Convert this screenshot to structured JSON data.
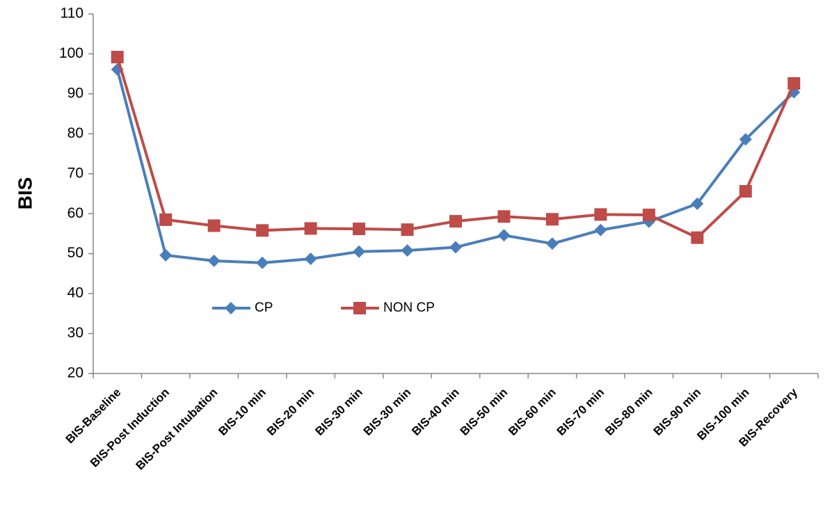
{
  "chart_data": {
    "type": "line",
    "y_label": "BIS",
    "categories": [
      "BIS-Baseline",
      "BIS-Post Induction",
      "BIS-Post Intubation",
      "BIS-10 min",
      "BIS-20 min",
      "BIS-30 min",
      "BIS-30 min",
      "BIS-40 min",
      "BIS-50 min",
      "BIS-60 min",
      "BIS-70 min",
      "BIS-80 min",
      "BIS-90 min",
      "BIS-100 min",
      "BIS-Recovery"
    ],
    "series": [
      {
        "name": "CP",
        "color": "#4a7ebb",
        "marker": "diamond",
        "values": [
          96.1,
          49.6,
          48.2,
          47.7,
          48.7,
          50.5,
          50.8,
          51.6,
          54.6,
          52.5,
          55.9,
          58.0,
          62.5,
          78.6,
          90.4
        ]
      },
      {
        "name": "NON CP",
        "color": "#be4b48",
        "marker": "square",
        "values": [
          99.2,
          58.5,
          57.0,
          55.8,
          56.3,
          56.2,
          56.0,
          58.1,
          59.3,
          58.6,
          59.8,
          59.7,
          54.0,
          65.6,
          92.6
        ]
      }
    ],
    "ylim": [
      20,
      110
    ],
    "yticks": [
      20,
      30,
      40,
      50,
      60,
      70,
      80,
      90,
      100,
      110
    ],
    "legend": "lower-left",
    "grid": false
  }
}
